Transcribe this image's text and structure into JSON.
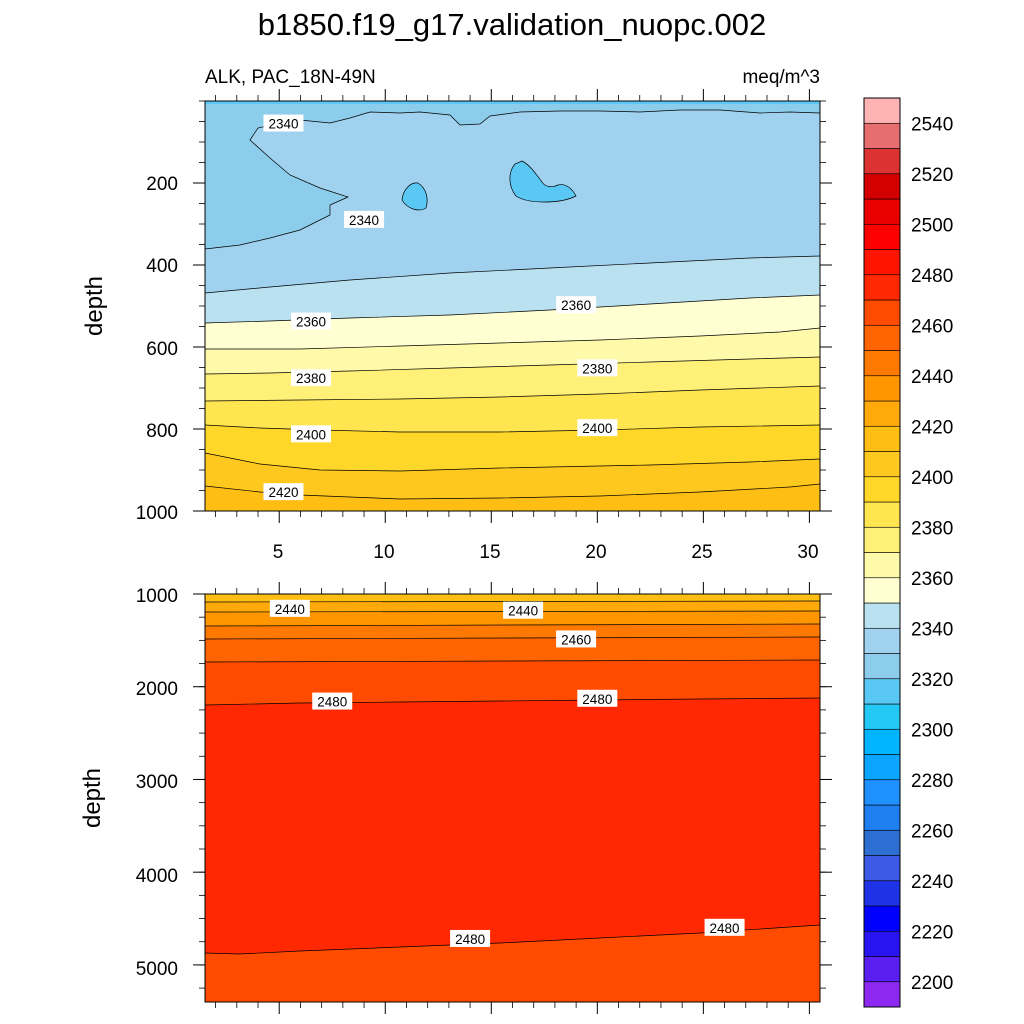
{
  "chart_data": {
    "type": "contour",
    "title": "b1850.f19_g17.validation_nuopc.002",
    "subtitle_left": "ALK, PAC_18N-49N",
    "subtitle_right": "meq/m^3",
    "colorbar": {
      "levels": [
        2200,
        2210,
        2220,
        2230,
        2240,
        2250,
        2260,
        2270,
        2280,
        2290,
        2300,
        2310,
        2320,
        2330,
        2340,
        2350,
        2360,
        2370,
        2380,
        2390,
        2400,
        2410,
        2420,
        2430,
        2440,
        2450,
        2460,
        2470,
        2480,
        2490,
        2500,
        2510,
        2520,
        2530,
        2540,
        2550
      ],
      "labels": [
        "2200",
        "2220",
        "2240",
        "2260",
        "2280",
        "2300",
        "2320",
        "2340",
        "2360",
        "2380",
        "2400",
        "2420",
        "2440",
        "2460",
        "2480",
        "2500",
        "2520",
        "2540"
      ],
      "colors": [
        "#8c28f0",
        "#5a1ef0",
        "#2814f0",
        "#0000ff",
        "#1e32e6",
        "#3c5ae6",
        "#2d6ed2",
        "#1e7ff0",
        "#1e91ff",
        "#0aa5ff",
        "#00b4ff",
        "#23c8f5",
        "#5ac8f5",
        "#8ccdeb",
        "#a0d2f0",
        "#b9e1f0",
        "#ffffd2",
        "#fffaaa",
        "#fff078",
        "#ffe650",
        "#ffd728",
        "#ffc81e",
        "#ffbe14",
        "#ffaa0a",
        "#ff9600",
        "#ff7800",
        "#ff6400",
        "#ff4b00",
        "#ff2800",
        "#ff1400",
        "#ff0000",
        "#eb0000",
        "#d20000",
        "#dc3232",
        "#e66e6e",
        "#ffb4b4"
      ]
    },
    "panels": [
      {
        "ylabel": "depth",
        "ylim": [
          1000,
          0
        ],
        "xlim": [
          1.5,
          30.5
        ],
        "yticks": [
          "200",
          "400",
          "600",
          "800",
          "1000"
        ],
        "xticks": [
          "5",
          "10",
          "15",
          "20",
          "25",
          "30"
        ],
        "contour_labels": [
          {
            "text": "2340",
            "x": 5.2,
            "y": 55
          },
          {
            "text": "2340",
            "x": 9.0,
            "y": 290
          },
          {
            "text": "2360",
            "x": 6.5,
            "y": 538
          },
          {
            "text": "2360",
            "x": 19.0,
            "y": 498
          },
          {
            "text": "2380",
            "x": 6.5,
            "y": 676
          },
          {
            "text": "2380",
            "x": 20.0,
            "y": 652
          },
          {
            "text": "2400",
            "x": 6.5,
            "y": 813
          },
          {
            "text": "2400",
            "x": 20.0,
            "y": 798
          },
          {
            "text": "2420",
            "x": 5.2,
            "y": 954
          }
        ]
      },
      {
        "ylabel": "depth",
        "ylim": [
          5400,
          1000
        ],
        "xlim": [
          1.5,
          30.5
        ],
        "yticks": [
          "1000",
          "2000",
          "3000",
          "4000",
          "5000"
        ],
        "contour_labels": [
          {
            "text": "2440",
            "x": 5.5,
            "y": 1160
          },
          {
            "text": "2440",
            "x": 16.5,
            "y": 1180
          },
          {
            "text": "2460",
            "x": 19.0,
            "y": 1490
          },
          {
            "text": "2480",
            "x": 7.5,
            "y": 2160
          },
          {
            "text": "2480",
            "x": 20.0,
            "y": 2130
          },
          {
            "text": "2480",
            "x": 14.0,
            "y": 4720
          },
          {
            "text": "2480",
            "x": 26.0,
            "y": 4600
          }
        ]
      }
    ]
  }
}
